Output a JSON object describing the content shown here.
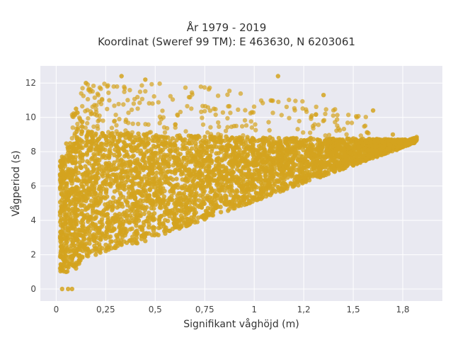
{
  "chart_data": {
    "type": "scatter",
    "title": "År 1979 - 2019",
    "subtitle": "Koordinat (Sweref 99 TM): E 463630, N 6203061",
    "xlabel": "Signifikant våghöjd (m)",
    "ylabel": "Vågperiod (s)",
    "xlim": [
      -0.08,
      1.95
    ],
    "ylim": [
      -0.7,
      13.0
    ],
    "xticks": [
      0,
      0.25,
      0.5,
      0.75,
      1,
      1.25,
      1.5,
      1.75
    ],
    "xtick_labels": [
      "0",
      "0,25",
      "0,5",
      "0,75",
      "1",
      "1,2",
      "1,5",
      "1,8"
    ],
    "yticks": [
      0,
      2,
      4,
      6,
      8,
      10,
      12
    ],
    "ytick_labels": [
      "0",
      "2",
      "4",
      "6",
      "8",
      "10",
      "12"
    ],
    "grid": true,
    "point_color": "#d4a31e",
    "background_color": "#e9e9f1",
    "envelope_points": [
      {
        "x": 0.03,
        "y": 0.0
      },
      {
        "x": 0.06,
        "y": 0.0
      },
      {
        "x": 0.08,
        "y": 0.0
      },
      {
        "x": 0.02,
        "y": 1.2
      },
      {
        "x": 0.02,
        "y": 3.0
      },
      {
        "x": 0.03,
        "y": 7.7
      },
      {
        "x": 0.05,
        "y": 1.0
      },
      {
        "x": 0.1,
        "y": 1.2
      },
      {
        "x": 0.2,
        "y": 2.0
      },
      {
        "x": 0.3,
        "y": 2.4
      },
      {
        "x": 0.45,
        "y": 2.8
      },
      {
        "x": 0.6,
        "y": 3.6
      },
      {
        "x": 0.75,
        "y": 4.3
      },
      {
        "x": 0.9,
        "y": 4.9
      },
      {
        "x": 1.0,
        "y": 5.3
      },
      {
        "x": 1.2,
        "y": 6.0
      },
      {
        "x": 1.35,
        "y": 6.6
      },
      {
        "x": 1.5,
        "y": 7.2
      },
      {
        "x": 1.62,
        "y": 7.7
      },
      {
        "x": 1.72,
        "y": 8.1
      },
      {
        "x": 1.82,
        "y": 8.7
      },
      {
        "x": 0.1,
        "y": 10.5
      },
      {
        "x": 0.15,
        "y": 12.0
      },
      {
        "x": 0.33,
        "y": 12.4
      },
      {
        "x": 0.45,
        "y": 12.2
      },
      {
        "x": 1.12,
        "y": 12.4
      },
      {
        "x": 1.35,
        "y": 11.3
      },
      {
        "x": 1.6,
        "y": 10.4
      },
      {
        "x": 1.7,
        "y": 9.0
      }
    ]
  }
}
